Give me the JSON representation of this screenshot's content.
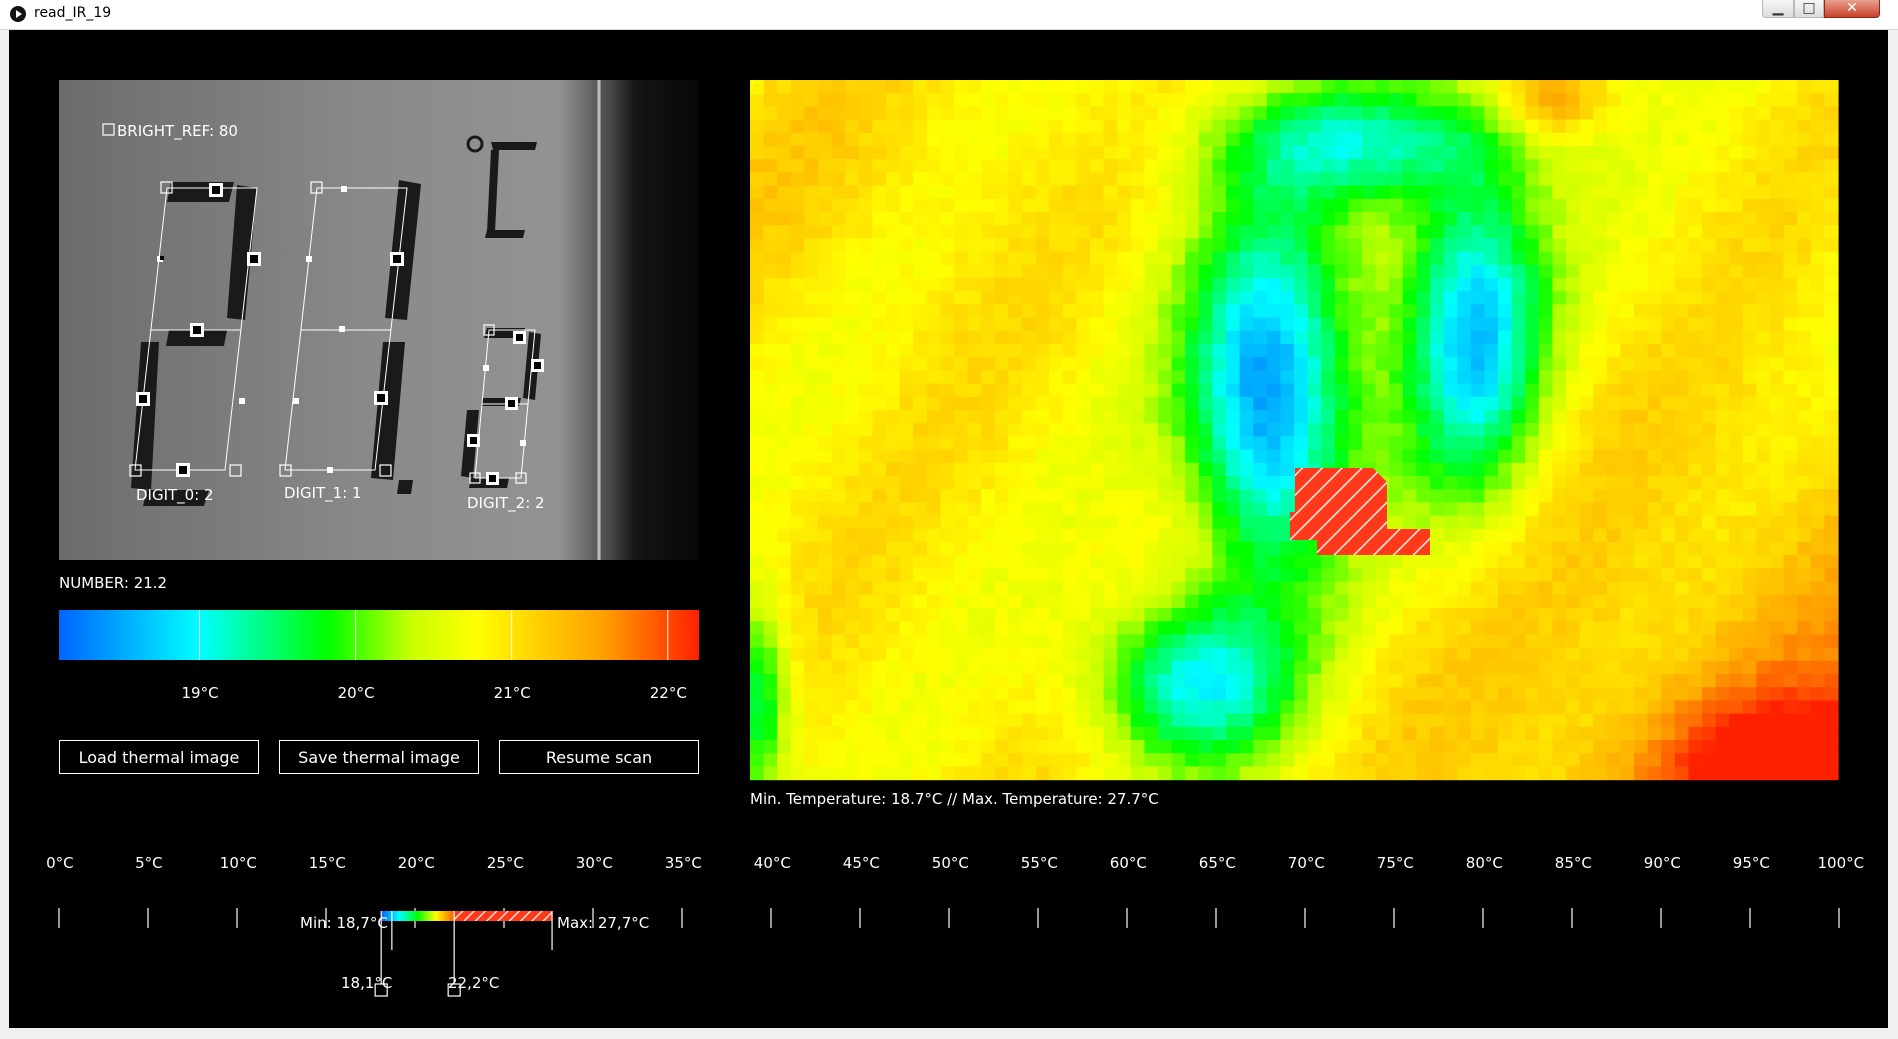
{
  "window": {
    "title": "read_IR_19",
    "minimize_label": "▁",
    "maximize_label": "□",
    "close_label": "✕"
  },
  "camera": {
    "bright_ref": "BRIGHT_REF: 80",
    "digits": [
      "DIGIT_0: 2",
      "DIGIT_1: 1",
      "DIGIT_2: 2"
    ],
    "number": "NUMBER: 21.2"
  },
  "colorbar": {
    "ticks": [
      "19°C",
      "20°C",
      "21°C",
      "22°C"
    ],
    "tick_values": [
      19,
      20,
      21,
      22
    ],
    "range": [
      18.1,
      22.2
    ]
  },
  "buttons": {
    "load": "Load thermal image",
    "save": "Save thermal image",
    "resume": "Resume scan"
  },
  "thermal": {
    "minmax": "Min. Temperature: 18.7°C // Max. Temperature: 27.7°C",
    "min_temp": 18.7,
    "max_temp": 27.7
  },
  "scale": {
    "ticks": [
      "0°C",
      "5°C",
      "10°C",
      "15°C",
      "20°C",
      "25°C",
      "30°C",
      "35°C",
      "40°C",
      "45°C",
      "50°C",
      "55°C",
      "60°C",
      "65°C",
      "70°C",
      "75°C",
      "80°C",
      "85°C",
      "90°C",
      "95°C",
      "100°C"
    ],
    "min_label": "Min: 18,7°C",
    "max_label": "Max: 27,7°C",
    "handle_low": "18,1°C",
    "handle_high": "22,2°C",
    "handle_low_value": 18.1,
    "handle_high_value": 22.2,
    "min_value": 18.7,
    "max_value": 27.7
  },
  "colors": {
    "gradient": [
      "#0064ff",
      "#00ffff",
      "#00ff00",
      "#ffff00",
      "#ff8000",
      "#ff2000"
    ],
    "hatch": "#ff3a1a"
  }
}
